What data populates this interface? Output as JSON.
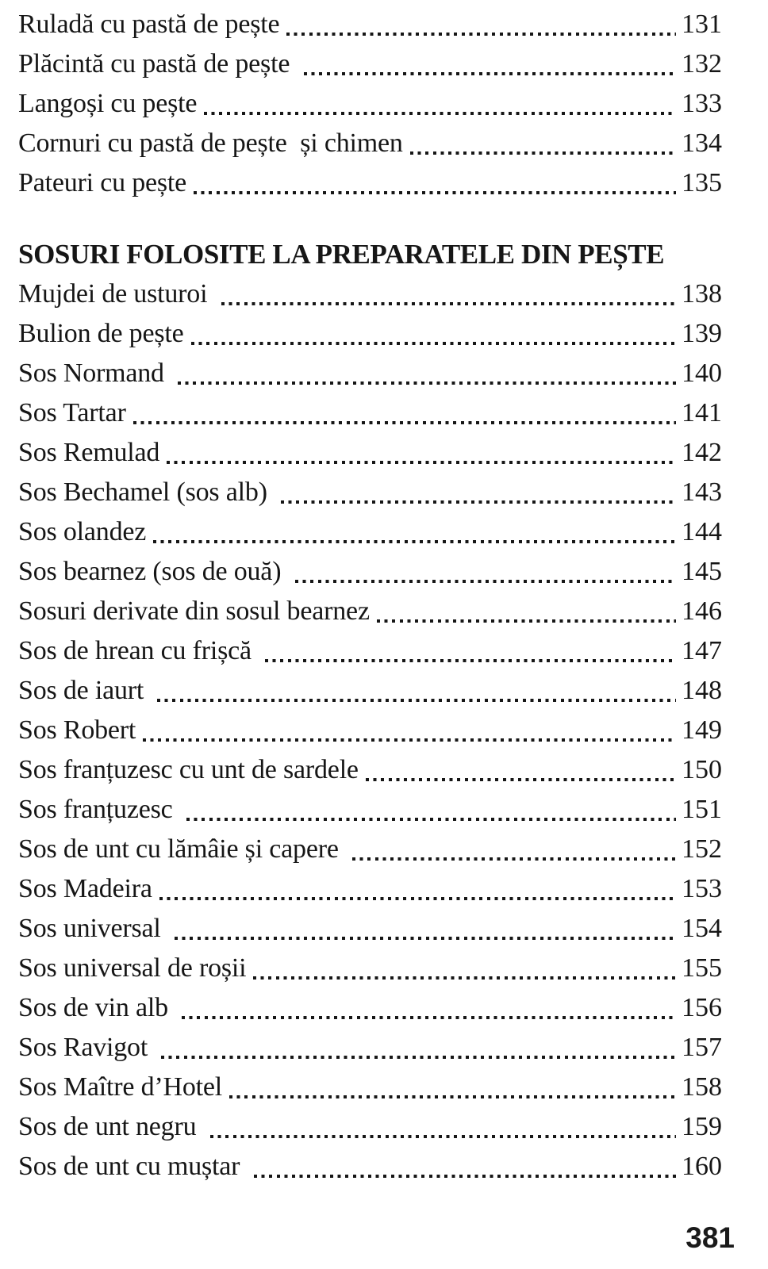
{
  "page": {
    "background": "#ffffff",
    "text_color": "#161616",
    "folio": "381"
  },
  "toc": {
    "entries_before": [
      {
        "title": "Ruladă cu pastă de pește",
        "page": "131"
      },
      {
        "title": "Plăcintă cu pastă de pește ",
        "page": "132"
      },
      {
        "title": "Langoși cu pește",
        "page": "133"
      },
      {
        "title": "Cornuri cu pastă de pește  și chimen",
        "page": "134"
      },
      {
        "title": "Pateuri cu pește",
        "page": "135"
      }
    ],
    "section_heading": "SOSURI FOLOSITE LA PREPARATELE DIN PEȘTE",
    "entries_after": [
      {
        "title": "Mujdei de usturoi ",
        "page": "138"
      },
      {
        "title": "Bulion de pește",
        "page": "139"
      },
      {
        "title": "Sos Normand ",
        "page": "140"
      },
      {
        "title": "Sos Tartar",
        "page": "141"
      },
      {
        "title": "Sos Remulad",
        "page": "142"
      },
      {
        "title": "Sos Bechamel (sos alb) ",
        "page": "143"
      },
      {
        "title": "Sos olandez",
        "page": "144"
      },
      {
        "title": "Sos bearnez (sos de ouă) ",
        "page": "145"
      },
      {
        "title": "Sosuri derivate din sosul bearnez",
        "page": "146"
      },
      {
        "title": "Sos de hrean cu frișcă ",
        "page": "147"
      },
      {
        "title": "Sos de iaurt ",
        "page": "148"
      },
      {
        "title": "Sos Robert",
        "page": "149"
      },
      {
        "title": "Sos franțuzesc cu unt de sardele",
        "page": "150"
      },
      {
        "title": "Sos franțuzesc ",
        "page": "151"
      },
      {
        "title": "Sos de unt cu lămâie și capere ",
        "page": "152"
      },
      {
        "title": "Sos Madeira",
        "page": "153"
      },
      {
        "title": "Sos universal ",
        "page": "154"
      },
      {
        "title": "Sos universal de roșii",
        "page": "155"
      },
      {
        "title": "Sos de vin alb ",
        "page": "156"
      },
      {
        "title": "Sos Ravigot ",
        "page": "157"
      },
      {
        "title": "Sos Maître d’Hotel",
        "page": "158"
      },
      {
        "title": "Sos de unt negru ",
        "page": "159"
      },
      {
        "title": "Sos de unt cu muștar ",
        "page": "160"
      }
    ]
  }
}
